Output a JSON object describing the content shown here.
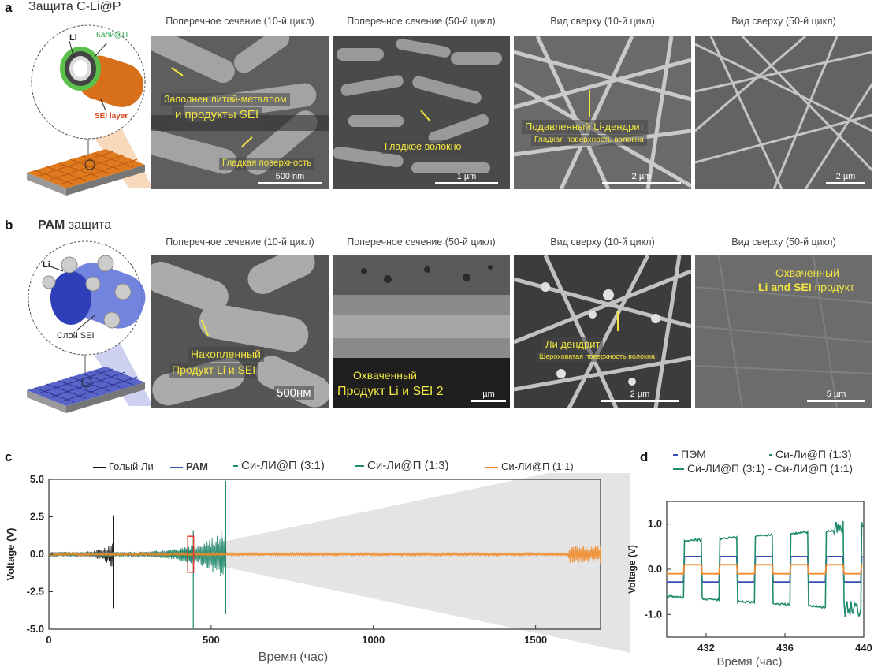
{
  "row_a": {
    "letter": "a",
    "title": "Защита C-Li@P",
    "schematic": {
      "li": "Li",
      "kali": "Кали@П",
      "sei": "SEI layer"
    },
    "images": [
      {
        "caption": "Поперечное сечение (10-й цикл)",
        "ann1": "Заполнен литий-металлом",
        "ann2": "и продукты SEI",
        "ann3": "Гладкая поверхность",
        "scale": "500 nm"
      },
      {
        "caption": "Поперечное сечение (50-й цикл)",
        "ann1": "Гладкое волокно",
        "scale": "1 µm"
      },
      {
        "caption": "Вид сверху (10-й цикл)",
        "ann1": "Подавленный Li-дендрит",
        "ann2": "Гладкая поверхность волокна",
        "scale": "2 µm"
      },
      {
        "caption": "Вид сверху (50-й цикл)",
        "scale": "2 µm"
      }
    ]
  },
  "row_b": {
    "letter": "b",
    "title_bold": "PAM",
    "title_rest": " защита",
    "schematic": {
      "li": "Li",
      "sei": "Слой SEI"
    },
    "images": [
      {
        "caption": "Поперечное сечение (10-й цикл)",
        "ann1": "Накопленный",
        "ann2": "Продукт Li и SEI",
        "scale": "500нм"
      },
      {
        "caption": "Поперечное сечение (50-й цикл)",
        "ann1": "Охваченный",
        "ann2": "Продукт Li и SEI",
        "ann3": "2",
        "scale": "µm"
      },
      {
        "caption": "Вид сверху (10-й цикл)",
        "ann1": "Ли дендрит",
        "ann2": "Шероховатая поверхность волокна",
        "scale": "2 µm"
      },
      {
        "caption": "Вид сверху (50-й цикл)",
        "ann1": "Охваченный",
        "ann2a": "Li and SEI",
        "ann2b": " продукт",
        "scale": "5 µm"
      }
    ]
  },
  "colors": {
    "bare": "#111111",
    "pam": "#3a4fb5",
    "c31": "#1f8a6e",
    "c13": "#1f8a6e",
    "c11": "#f08a2a"
  },
  "chart_data": [
    {
      "type": "line",
      "panel": "c",
      "xlabel": "Время (час)",
      "ylabel": "Voltage (V)",
      "xlim": [
        0,
        1700
      ],
      "ylim": [
        -5.0,
        5.0
      ],
      "xticks": [
        "0",
        "500",
        "1000",
        "1500"
      ],
      "yticks": [
        "5.0",
        "2.5",
        "0.0",
        "-2.5",
        "-5.0"
      ],
      "legend_position": "top",
      "series": [
        {
          "name": "Голый Ли",
          "color": "#111111",
          "end_hour": 200,
          "spike_max": 2.6,
          "spike_min": -3.6
        },
        {
          "name": "PAM",
          "color": "#3a4fb5",
          "end_hour": 440,
          "spike_max": 0.6,
          "spike_min": -0.6
        },
        {
          "name": "Си-ЛИ@П (3:1)",
          "color": "#1f8a6e",
          "end_hour": 545,
          "spike_max": 4.9,
          "spike_min": -4.0
        },
        {
          "name": "Си-Ли@П (1:3)",
          "color": "#1f8a6e",
          "end_hour": 445,
          "spike_max": 1.6,
          "spike_min": -5.0
        },
        {
          "name": "Си-ЛИ@П (1:1)",
          "color": "#f08a2a",
          "end_hour": 1700,
          "spike_max": 0.6,
          "spike_min": -0.6
        }
      ]
    },
    {
      "type": "line",
      "panel": "d",
      "xlabel": "Время (час)",
      "ylabel": "Voltage (V)",
      "xlim": [
        430,
        440
      ],
      "ylim": [
        -1.5,
        1.5
      ],
      "xticks": [
        "432",
        "436",
        "440"
      ],
      "yticks": [
        "1.0",
        "0.0",
        "-1.0"
      ],
      "legend_position": "top",
      "legend": [
        "ПЭМ",
        "Си-Ли@П (1:3)",
        "Си-ЛИ@П (3:1) - Си-ЛИ@П (1:1)"
      ],
      "series": [
        {
          "name": "ПЭМ",
          "color": "#3a4fb5",
          "amplitude": 0.28
        },
        {
          "name": "Си-Ли@П (1:3)",
          "color": "#1f8a6e",
          "amplitude": 0.75
        },
        {
          "name": "Си-ЛИ@П (1:1)",
          "color": "#f08a2a",
          "amplitude": 0.05
        }
      ]
    }
  ],
  "panel_c_letter": "c",
  "panel_d_letter": "d"
}
